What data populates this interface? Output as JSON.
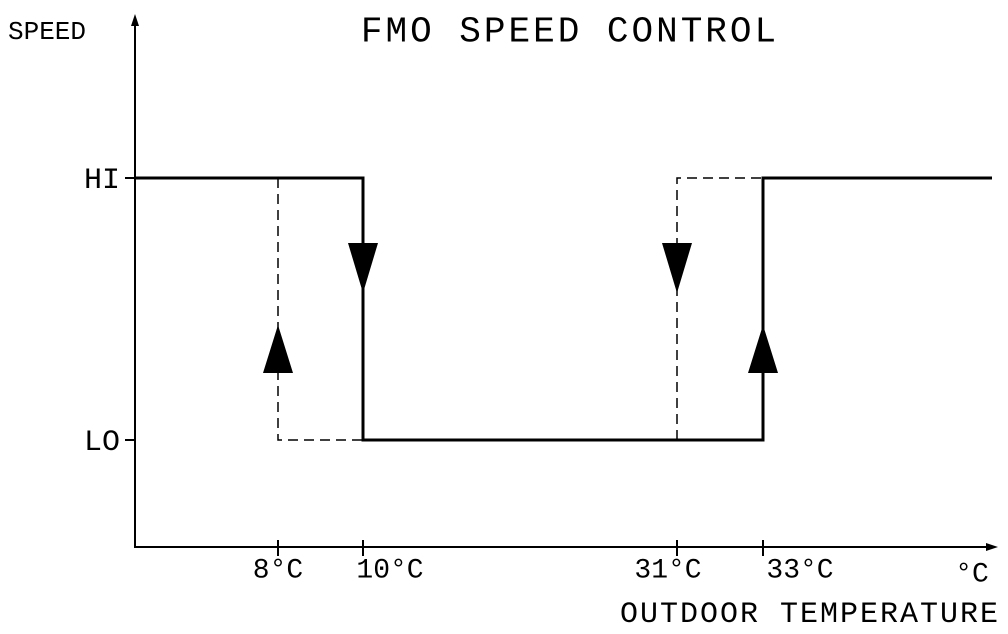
{
  "header": {
    "title": "FMO SPEED CONTROL"
  },
  "axes": {
    "y_label": "SPEED",
    "x_label": "OUTDOOR TEMPERATURE",
    "x_unit": "°C",
    "y_levels": [
      "HI",
      "LO"
    ],
    "x_thresholds": [
      "8°C",
      "10°C",
      "31°C",
      "33°C"
    ]
  }
}
